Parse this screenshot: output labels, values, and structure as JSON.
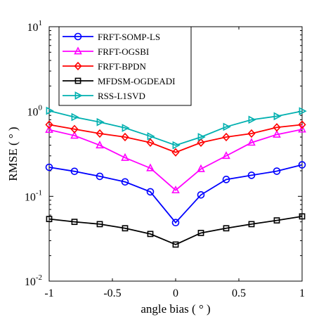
{
  "chart_data": {
    "type": "line",
    "xlabel": "angle bias ( ° )",
    "ylabel": "RMSE  ( ° )",
    "xlim": [
      -1,
      1
    ],
    "ylim": [
      0.01,
      10
    ],
    "yscale": "log",
    "x_ticks": [
      "-1",
      "-0.5",
      "0",
      "0.5",
      "1"
    ],
    "y_ticks": [
      {
        "base": "10",
        "exp": "-2",
        "value": 0.01
      },
      {
        "base": "10",
        "exp": "-1",
        "value": 0.1
      },
      {
        "base": "10",
        "exp": "0",
        "value": 1
      },
      {
        "base": "10",
        "exp": "1",
        "value": 10
      }
    ],
    "x": [
      -1,
      -0.8,
      -0.6,
      -0.4,
      -0.2,
      0,
      0.2,
      0.4,
      0.6,
      0.8,
      1
    ],
    "legend_position": "top-left",
    "series": [
      {
        "name": "FRFT-SOMP-LS",
        "color": "#0000ff",
        "marker": "circle",
        "values": [
          0.22,
          0.197,
          0.172,
          0.148,
          0.113,
          0.049,
          0.104,
          0.158,
          0.177,
          0.198,
          0.235
        ]
      },
      {
        "name": "FRFT-OGSBI",
        "color": "#ff00ff",
        "marker": "triangle-up",
        "values": [
          0.61,
          0.52,
          0.4,
          0.285,
          0.215,
          0.118,
          0.21,
          0.3,
          0.43,
          0.535,
          0.615
        ]
      },
      {
        "name": "FRFT-BPDN",
        "color": "#ff0000",
        "marker": "diamond",
        "values": [
          0.7,
          0.62,
          0.55,
          0.5,
          0.43,
          0.33,
          0.43,
          0.5,
          0.55,
          0.65,
          0.7
        ]
      },
      {
        "name": "MFDSM-OGDEADI",
        "color": "#000000",
        "marker": "square",
        "values": [
          0.054,
          0.05,
          0.047,
          0.042,
          0.036,
          0.027,
          0.037,
          0.042,
          0.047,
          0.052,
          0.058
        ]
      },
      {
        "name": "RSS-L1SVD",
        "color": "#00b0b0",
        "marker": "triangle-right",
        "values": [
          1.02,
          0.86,
          0.75,
          0.64,
          0.51,
          0.4,
          0.5,
          0.66,
          0.8,
          0.88,
          1.01
        ]
      }
    ]
  }
}
